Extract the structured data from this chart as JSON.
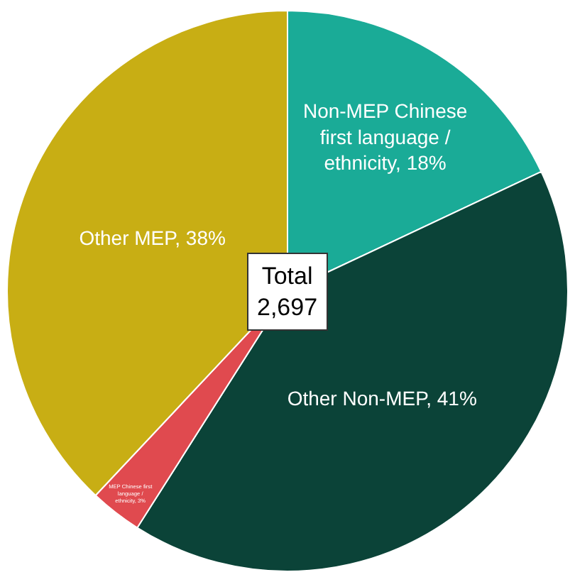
{
  "chart_data": {
    "type": "pie",
    "categories": [
      "Non-MEP Chinese first language / ethnicity",
      "Other Non-MEP",
      "MEP Chinese first language / ethnicity",
      "Other MEP"
    ],
    "values": [
      18,
      41,
      3,
      38
    ],
    "value_labels": [
      "18%",
      "41%",
      "3%",
      "38%"
    ],
    "colors": [
      "#1aab97",
      "#0b4338",
      "#e04a4f",
      "#c8ae14"
    ],
    "annotations": [
      "Total\n2,697"
    ],
    "legend": false
  }
}
